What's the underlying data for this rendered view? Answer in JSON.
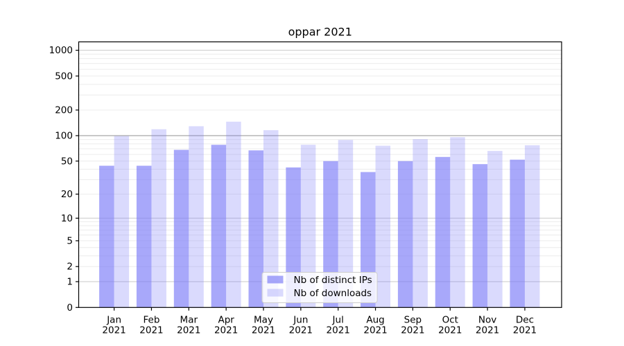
{
  "figure": {
    "title": "oppar 2021"
  },
  "chart_data": {
    "type": "bar",
    "title": "oppar 2021",
    "categories": [
      "Jan",
      "Feb",
      "Mar",
      "Apr",
      "May",
      "Jun",
      "Jul",
      "Aug",
      "Sep",
      "Oct",
      "Nov",
      "Dec"
    ],
    "category_year": "2021",
    "series": [
      {
        "name": "Nb of distinct IPs",
        "color": "#7a7af7",
        "alpha": 0.65,
        "values": [
          44,
          44,
          68,
          78,
          67,
          42,
          50,
          37,
          50,
          56,
          46,
          52
        ]
      },
      {
        "name": "Nb of downloads",
        "color": "#7a7af7",
        "alpha": 0.28,
        "values": [
          99,
          119,
          129,
          146,
          116,
          78,
          89,
          76,
          91,
          96,
          66,
          77
        ]
      }
    ],
    "yaxis": {
      "scale": "log1p",
      "ticks": [
        0,
        1,
        2,
        5,
        10,
        20,
        50,
        100,
        200,
        500,
        1000
      ],
      "top_value": 1250
    },
    "xlabel": "",
    "ylabel": "",
    "grid": {
      "enabled": true,
      "minor_color": "#ececec",
      "major_color": "#c9c9c9",
      "emphasis_line_value": 100,
      "emphasis_color": "#a6a6a6"
    },
    "legend": {
      "position": "lower-center",
      "background": "#ffffff",
      "background_alpha": 0.8,
      "border_color": "#cccccc"
    }
  }
}
